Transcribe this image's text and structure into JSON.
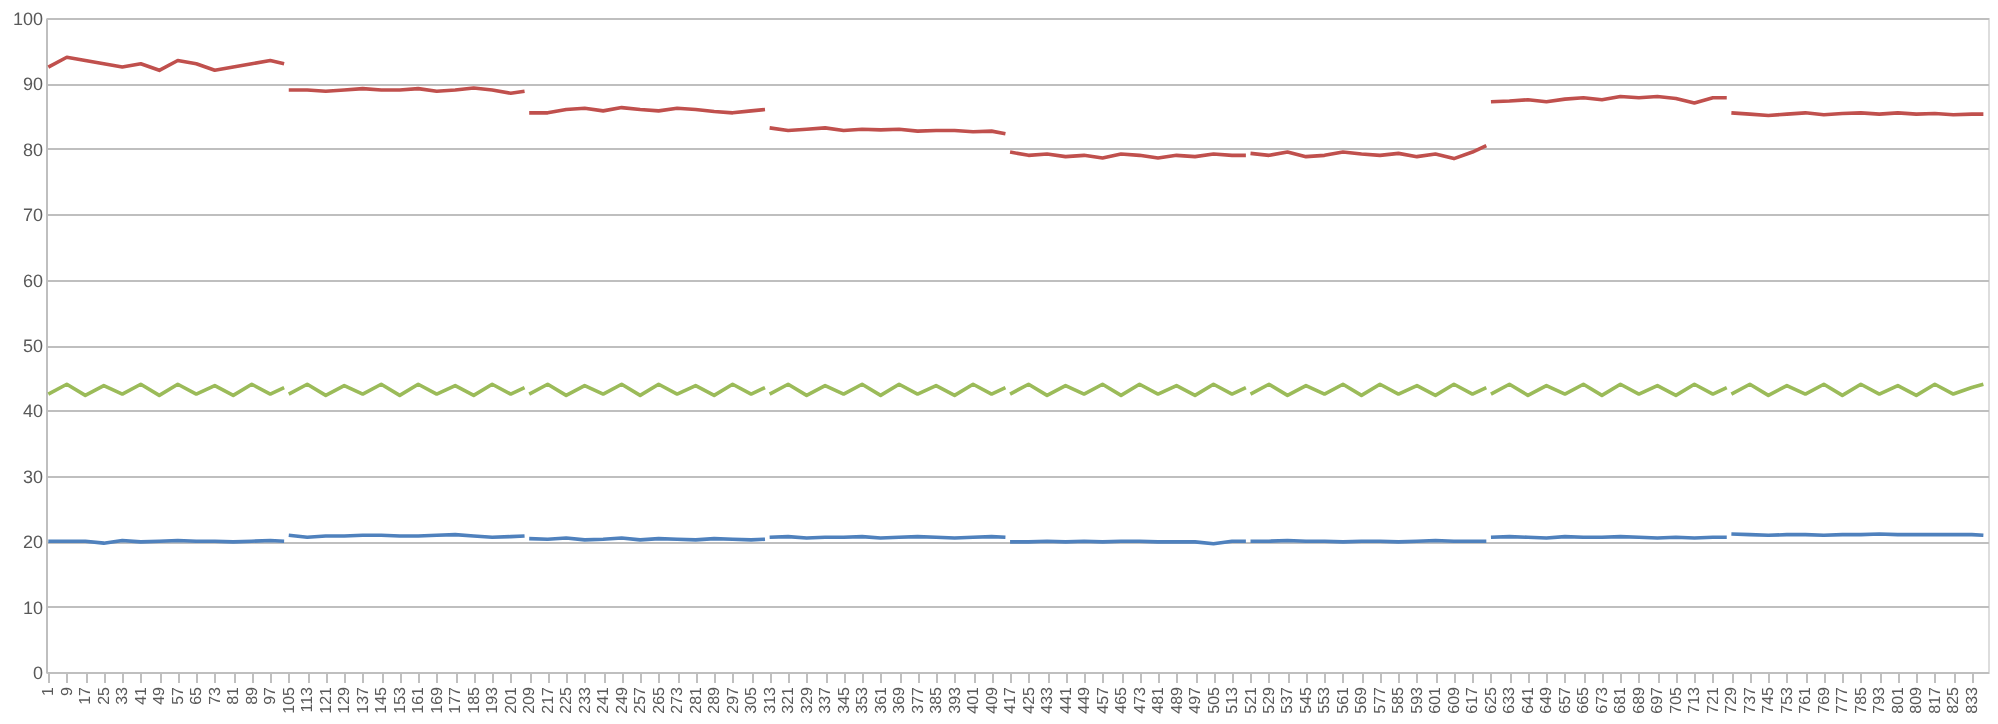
{
  "chart_data": {
    "type": "line",
    "x": [
      1,
      9,
      17,
      25,
      33,
      41,
      49,
      57,
      65,
      73,
      81,
      89,
      97,
      103,
      104,
      105,
      113,
      121,
      129,
      137,
      145,
      153,
      161,
      169,
      177,
      185,
      193,
      201,
      207,
      208,
      209,
      217,
      225,
      233,
      241,
      249,
      257,
      265,
      273,
      281,
      289,
      297,
      305,
      311,
      312,
      313,
      321,
      329,
      337,
      345,
      353,
      361,
      369,
      377,
      385,
      393,
      401,
      409,
      415,
      416,
      417,
      425,
      433,
      441,
      449,
      457,
      465,
      473,
      481,
      489,
      497,
      505,
      513,
      519,
      520,
      521,
      529,
      537,
      545,
      553,
      561,
      569,
      577,
      585,
      593,
      601,
      609,
      617,
      623,
      624,
      625,
      633,
      641,
      649,
      657,
      665,
      673,
      681,
      689,
      697,
      705,
      713,
      721,
      727,
      728,
      729,
      737,
      745,
      753,
      761,
      769,
      777,
      785,
      793,
      801,
      809,
      817,
      825,
      833,
      838
    ],
    "series": [
      {
        "color": "#c0504d",
        "values": [
          92.5,
          94,
          93.5,
          93,
          92.5,
          93,
          92,
          93.5,
          93,
          92,
          92.5,
          93,
          93.5,
          93,
          null,
          89,
          89,
          88.8,
          89,
          89.2,
          89,
          89,
          89.2,
          88.8,
          89,
          89.3,
          89,
          88.5,
          88.8,
          null,
          85.5,
          85.5,
          86,
          86.2,
          85.8,
          86.3,
          86,
          85.8,
          86.2,
          86,
          85.7,
          85.5,
          85.8,
          86,
          null,
          83.2,
          82.8,
          83,
          83.2,
          82.8,
          83,
          82.9,
          83,
          82.7,
          82.8,
          82.8,
          82.6,
          82.7,
          82.3,
          null,
          79.5,
          79,
          79.2,
          78.8,
          79,
          78.6,
          79.2,
          79,
          78.6,
          79,
          78.8,
          79.2,
          79,
          79,
          null,
          79.3,
          79,
          79.5,
          78.8,
          79,
          79.5,
          79.2,
          79,
          79.3,
          78.8,
          79.2,
          78.5,
          79.5,
          80.5,
          null,
          87.2,
          87.3,
          87.5,
          87.2,
          87.6,
          87.8,
          87.5,
          88,
          87.8,
          88,
          87.7,
          87,
          87.8,
          87.8,
          null,
          85.5,
          85.3,
          85.1,
          85.3,
          85.5,
          85.2,
          85.4,
          85.5,
          85.3,
          85.5,
          85.3,
          85.4,
          85.2,
          85.3,
          85.3
        ]
      },
      {
        "color": "#9bbb59",
        "values": [
          42.5,
          44,
          42.3,
          43.8,
          42.5,
          44,
          42.3,
          44,
          42.5,
          43.8,
          42.3,
          44,
          42.5,
          43.5,
          null,
          42.5,
          44,
          42.3,
          43.8,
          42.5,
          44,
          42.3,
          44,
          42.5,
          43.8,
          42.3,
          44,
          42.5,
          43.5,
          null,
          42.5,
          44,
          42.3,
          43.8,
          42.5,
          44,
          42.3,
          44,
          42.5,
          43.8,
          42.3,
          44,
          42.5,
          43.5,
          null,
          42.5,
          44,
          42.3,
          43.8,
          42.5,
          44,
          42.3,
          44,
          42.5,
          43.8,
          42.3,
          44,
          42.5,
          43.5,
          null,
          42.5,
          44,
          42.3,
          43.8,
          42.5,
          44,
          42.3,
          44,
          42.5,
          43.8,
          42.3,
          44,
          42.5,
          43.5,
          null,
          42.5,
          44,
          42.3,
          43.8,
          42.5,
          44,
          42.3,
          44,
          42.5,
          43.8,
          42.3,
          44,
          42.5,
          43.5,
          null,
          42.5,
          44,
          42.3,
          43.8,
          42.5,
          44,
          42.3,
          44,
          42.5,
          43.8,
          42.3,
          44,
          42.5,
          43.5,
          null,
          42.5,
          44,
          42.3,
          43.8,
          42.5,
          44,
          42.3,
          44,
          42.5,
          43.8,
          42.3,
          44,
          42.5,
          43.5,
          44
        ]
      },
      {
        "color": "#4f81bd",
        "values": [
          20,
          20,
          20,
          19.7,
          20.1,
          19.9,
          20,
          20.1,
          20,
          20,
          19.9,
          20,
          20.1,
          20,
          null,
          20.9,
          20.6,
          20.8,
          20.8,
          20.9,
          20.9,
          20.8,
          20.8,
          20.9,
          21,
          20.8,
          20.6,
          20.7,
          20.8,
          null,
          20.4,
          20.3,
          20.5,
          20.2,
          20.3,
          20.5,
          20.2,
          20.4,
          20.3,
          20.2,
          20.4,
          20.3,
          20.2,
          20.3,
          null,
          20.6,
          20.7,
          20.5,
          20.6,
          20.6,
          20.7,
          20.5,
          20.6,
          20.7,
          20.6,
          20.5,
          20.6,
          20.7,
          20.6,
          null,
          19.9,
          19.9,
          20,
          19.9,
          20,
          19.9,
          20,
          20,
          19.9,
          19.9,
          19.9,
          19.6,
          20,
          20,
          null,
          20,
          20,
          20.1,
          20,
          20,
          19.9,
          20,
          20,
          19.9,
          20,
          20.1,
          20,
          20,
          20,
          null,
          20.6,
          20.7,
          20.6,
          20.5,
          20.7,
          20.6,
          20.6,
          20.7,
          20.6,
          20.5,
          20.6,
          20.5,
          20.6,
          20.6,
          null,
          21.1,
          21,
          20.9,
          21,
          21,
          20.9,
          21,
          21,
          21.1,
          21,
          21,
          21,
          21,
          21,
          20.9
        ]
      }
    ],
    "xlim": [
      0,
      840
    ],
    "xticks": [
      1,
      9,
      17,
      25,
      33,
      41,
      49,
      57,
      65,
      73,
      81,
      89,
      97,
      105,
      113,
      121,
      129,
      137,
      145,
      153,
      161,
      169,
      177,
      185,
      193,
      201,
      209,
      217,
      225,
      233,
      241,
      249,
      257,
      265,
      273,
      281,
      289,
      297,
      305,
      313,
      321,
      329,
      337,
      345,
      353,
      361,
      369,
      377,
      385,
      393,
      401,
      409,
      417,
      425,
      433,
      441,
      449,
      457,
      465,
      473,
      481,
      489,
      497,
      505,
      513,
      521,
      529,
      537,
      545,
      553,
      561,
      569,
      577,
      585,
      593,
      601,
      609,
      617,
      625,
      633,
      641,
      649,
      657,
      665,
      673,
      681,
      689,
      697,
      705,
      713,
      721,
      729,
      737,
      745,
      753,
      761,
      769,
      777,
      785,
      793,
      801,
      809,
      817,
      825,
      833
    ],
    "ylim": [
      0,
      100
    ],
    "yticks": [
      0,
      10,
      20,
      30,
      40,
      50,
      60,
      70,
      80,
      90,
      100
    ],
    "grid": "y",
    "line_style": "solid",
    "marker": "none"
  }
}
